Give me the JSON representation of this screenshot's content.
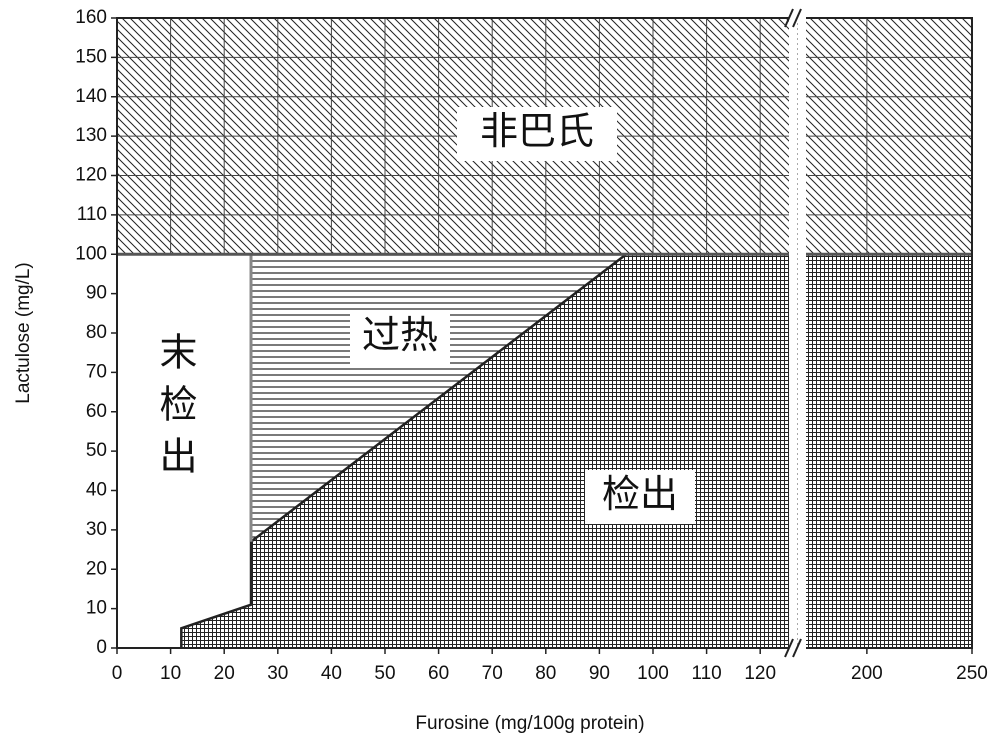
{
  "chart_data": {
    "type": "region",
    "x_label": "Furosine (mg/100g protein)",
    "y_label": "Lactulose (mg/L)",
    "xlim_segments": [
      [
        0,
        125
      ],
      [
        172,
        250
      ]
    ],
    "xticks": [
      0,
      10,
      20,
      30,
      40,
      50,
      60,
      70,
      80,
      90,
      100,
      110,
      120,
      200,
      250
    ],
    "ylim": [
      0,
      160
    ],
    "yticks": [
      0,
      10,
      20,
      30,
      40,
      50,
      60,
      70,
      80,
      90,
      100,
      110,
      120,
      130,
      140,
      150,
      160
    ],
    "boundary": {
      "x": [
        12,
        12,
        25,
        25,
        95,
        250
      ],
      "y": [
        0,
        5,
        11,
        27,
        100,
        100
      ]
    },
    "overheat_x": 25,
    "upper_limit": 100,
    "regions": {
      "non_pasteurized": "非巴氏",
      "overheat": "过热",
      "not_detected": "末检出",
      "detected": "检出"
    }
  }
}
